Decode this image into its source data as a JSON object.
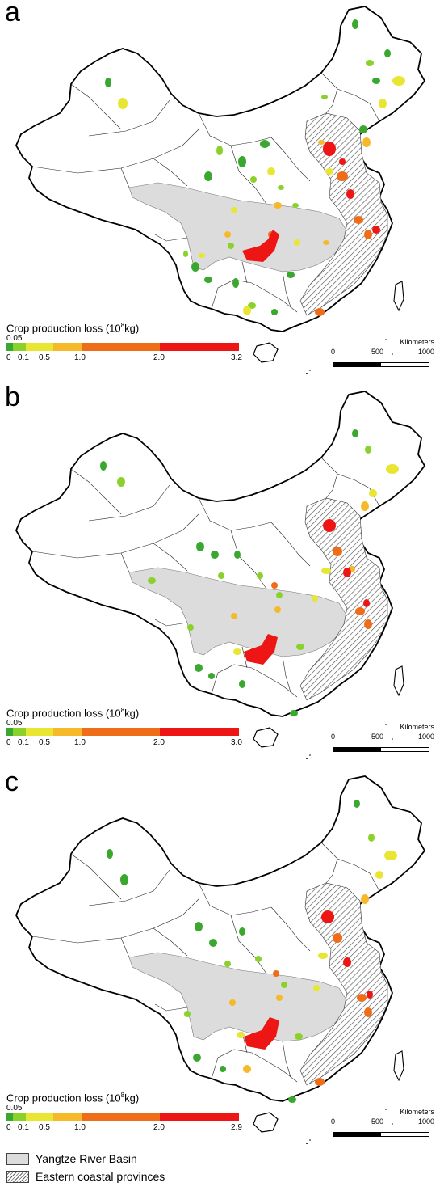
{
  "colors": {
    "class_0_005": "#3aa82e",
    "class_005_01": "#8bd12b",
    "class_01_05": "#e8e633",
    "class_05_10": "#f6b929",
    "class_10_20": "#ef6c19",
    "class_20_max": "#ee1515",
    "yangtze_fill": "#dcdcdc",
    "boundary": "#000000"
  },
  "panels": [
    {
      "label": "a",
      "legend": {
        "title": "Crop production loss (10",
        "title_exp": "8",
        "title_unit": "kg)",
        "top_tick": "0.05",
        "ticks": [
          "0",
          "0.1",
          "0.5",
          "1.0",
          "2.0",
          "3.2"
        ]
      },
      "scale": {
        "title": "Kilometers",
        "labels": [
          "0",
          "500",
          "1000"
        ]
      }
    },
    {
      "label": "b",
      "legend": {
        "title": "Crop production loss (10",
        "title_exp": "8",
        "title_unit": "kg)",
        "top_tick": "0.05",
        "ticks": [
          "0",
          "0.1",
          "0.5",
          "1.0",
          "2.0",
          "3.0"
        ]
      },
      "scale": {
        "title": "Kilometers",
        "labels": [
          "0",
          "500",
          "1000"
        ]
      }
    },
    {
      "label": "c",
      "legend": {
        "title": "Crop production loss (10",
        "title_exp": "8",
        "title_unit": "kg)",
        "top_tick": "0.05",
        "ticks": [
          "0",
          "0.1",
          "0.5",
          "1.0",
          "2.0",
          "2.9"
        ]
      },
      "scale": {
        "title": "Kilometers",
        "labels": [
          "0",
          "500",
          "1000"
        ]
      }
    }
  ],
  "bottom_legend": {
    "yangtze": "Yangtze River Basin",
    "coastal": "Eastern coastal provinces"
  }
}
